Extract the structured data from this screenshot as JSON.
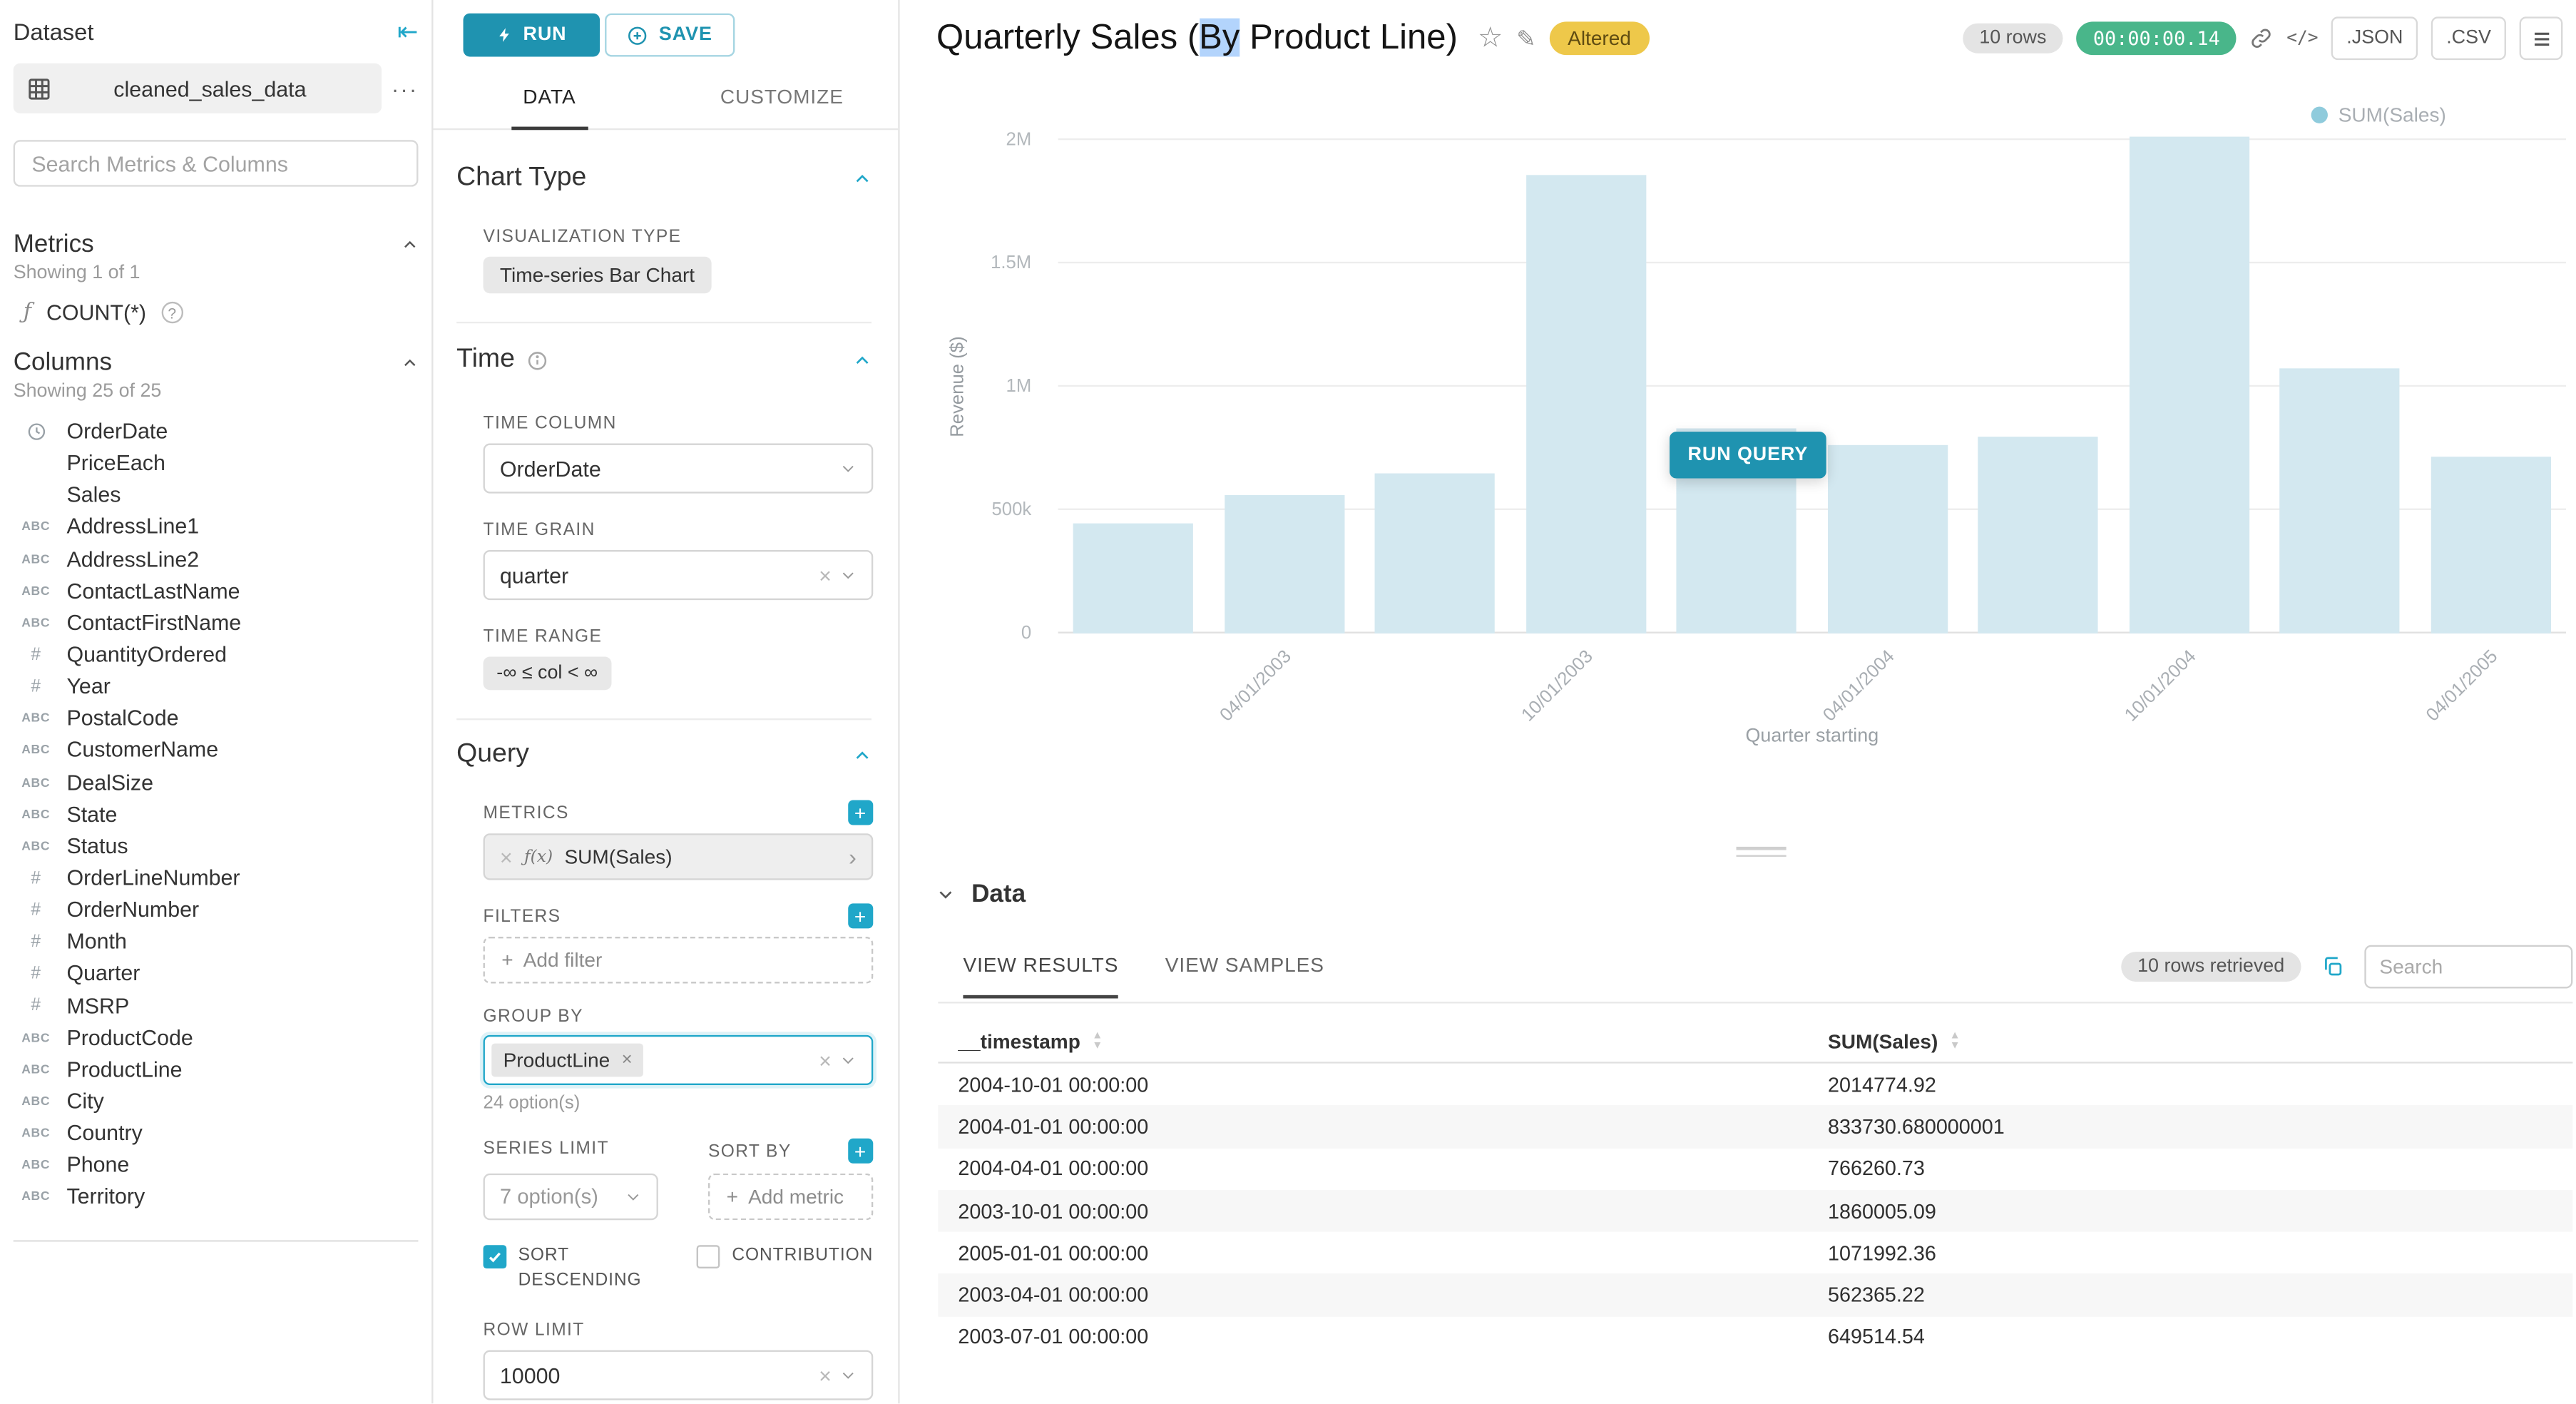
{
  "dataset_panel": {
    "title": "Dataset",
    "dataset_name": "cleaned_sales_data",
    "search_placeholder": "Search Metrics & Columns",
    "metrics_header": "Metrics",
    "metrics_showing": "Showing 1 of 1",
    "metrics": [
      {
        "icon": "function-icon",
        "label": "COUNT(*)"
      }
    ],
    "columns_header": "Columns",
    "columns_showing": "Showing 25 of 25",
    "columns": [
      {
        "icon": "clock",
        "label": "OrderDate"
      },
      {
        "icon": "",
        "label": "PriceEach"
      },
      {
        "icon": "",
        "label": "Sales"
      },
      {
        "icon": "abc",
        "label": "AddressLine1"
      },
      {
        "icon": "abc",
        "label": "AddressLine2"
      },
      {
        "icon": "abc",
        "label": "ContactLastName"
      },
      {
        "icon": "abc",
        "label": "ContactFirstName"
      },
      {
        "icon": "num",
        "label": "QuantityOrdered"
      },
      {
        "icon": "num",
        "label": "Year"
      },
      {
        "icon": "abc",
        "label": "PostalCode"
      },
      {
        "icon": "abc",
        "label": "CustomerName"
      },
      {
        "icon": "abc",
        "label": "DealSize"
      },
      {
        "icon": "abc",
        "label": "State"
      },
      {
        "icon": "abc",
        "label": "Status"
      },
      {
        "icon": "num",
        "label": "OrderLineNumber"
      },
      {
        "icon": "num",
        "label": "OrderNumber"
      },
      {
        "icon": "num",
        "label": "Month"
      },
      {
        "icon": "num",
        "label": "Quarter"
      },
      {
        "icon": "num",
        "label": "MSRP"
      },
      {
        "icon": "abc",
        "label": "ProductCode"
      },
      {
        "icon": "abc",
        "label": "ProductLine"
      },
      {
        "icon": "abc",
        "label": "City"
      },
      {
        "icon": "abc",
        "label": "Country"
      },
      {
        "icon": "abc",
        "label": "Phone"
      },
      {
        "icon": "abc",
        "label": "Territory"
      }
    ]
  },
  "control_panel": {
    "run_label": "RUN",
    "save_label": "SAVE",
    "tabs": [
      "DATA",
      "CUSTOMIZE"
    ],
    "chart_type": {
      "header": "Chart Type",
      "viz_type_label": "VISUALIZATION TYPE",
      "viz_type_value": "Time-series Bar Chart"
    },
    "time": {
      "header": "Time",
      "time_column_label": "TIME COLUMN",
      "time_column_value": "OrderDate",
      "time_grain_label": "TIME GRAIN",
      "time_grain_value": "quarter",
      "time_range_label": "TIME RANGE",
      "time_range_value": "-∞ ≤ col < ∞"
    },
    "query": {
      "header": "Query",
      "metrics_label": "METRICS",
      "metric_prefix": "ƒ(x)",
      "metric_value": "SUM(Sales)",
      "filters_label": "FILTERS",
      "add_filter_label": "Add filter",
      "group_by_label": "GROUP BY",
      "group_by_tag": "ProductLine",
      "options_hint": "24 option(s)",
      "series_limit_label": "SERIES LIMIT",
      "series_limit_value": "7 option(s)",
      "sort_by_label": "SORT BY",
      "add_metric_label": "Add metric",
      "sort_descending_label": "SORT DESCENDING",
      "contribution_label": "CONTRIBUTION",
      "row_limit_label": "ROW LIMIT",
      "row_limit_value": "10000"
    }
  },
  "header": {
    "title_pre": "Quarterly Sales (",
    "title_selected": "By",
    "title_post": " Product Line)",
    "altered_badge": "Altered",
    "rows_badge": "10 rows",
    "timer": "00:00:00.14",
    "json_label": ".JSON",
    "csv_label": ".CSV",
    "run_query_label": "RUN QUERY"
  },
  "chart_data": {
    "type": "bar",
    "title": "Quarterly Sales (By Product Line)",
    "x": [
      "2003-01-01",
      "2003-04-01",
      "2003-07-01",
      "2003-10-01",
      "2004-01-01",
      "2004-04-01",
      "2004-07-01",
      "2004-10-01",
      "2005-01-01",
      "2005-04-01"
    ],
    "series": [
      {
        "name": "SUM(Sales)",
        "values": [
          445094,
          562365.22,
          649514.54,
          1860005.09,
          833730.68,
          766260.73,
          795144,
          2014774.92,
          1071992.36,
          719494
        ]
      }
    ],
    "xlabel": "Quarter starting",
    "ylabel": "Revenue ($)",
    "ylim": [
      0,
      2000000
    ],
    "ytick_labels": [
      "0",
      "500k",
      "1M",
      "1.5M",
      "2M"
    ],
    "xtick_labels": [
      "04/01/2003",
      "10/01/2003",
      "04/01/2004",
      "10/01/2004",
      "04/01/2005"
    ],
    "xtick_slots": [
      1,
      3,
      5,
      7,
      9
    ],
    "legend": [
      "SUM(Sales)"
    ],
    "legend_position": "top-right",
    "grid": true,
    "bar_color": "#d3e8f0",
    "stale_overlay": true
  },
  "data_section": {
    "header": "Data",
    "tabs": [
      "VIEW RESULTS",
      "VIEW SAMPLES"
    ],
    "rows_retrieved": "10 rows retrieved",
    "search_placeholder": "Search",
    "table": {
      "columns": [
        "__timestamp",
        "SUM(Sales)"
      ],
      "rows": [
        [
          "2004-10-01 00:00:00",
          "2014774.92"
        ],
        [
          "2004-01-01 00:00:00",
          "833730.680000001"
        ],
        [
          "2004-04-01 00:00:00",
          "766260.73"
        ],
        [
          "2003-10-01 00:00:00",
          "1860005.09"
        ],
        [
          "2005-01-01 00:00:00",
          "1071992.36"
        ],
        [
          "2003-04-01 00:00:00",
          "562365.22"
        ],
        [
          "2003-07-01 00:00:00",
          "649514.54"
        ]
      ]
    }
  }
}
